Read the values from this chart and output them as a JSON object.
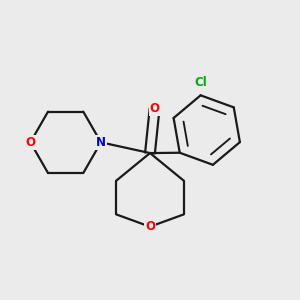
{
  "background_color": "#ebebeb",
  "bond_color": "#1a1a1a",
  "bond_width": 1.6,
  "atom_colors": {
    "O": "#ff0000",
    "N": "#0000cc",
    "Cl": "#00aa00"
  },
  "font_size_atom": 8.5,
  "font_size_cl": 8.5,
  "figsize": [
    3.0,
    3.0
  ],
  "dpi": 100
}
